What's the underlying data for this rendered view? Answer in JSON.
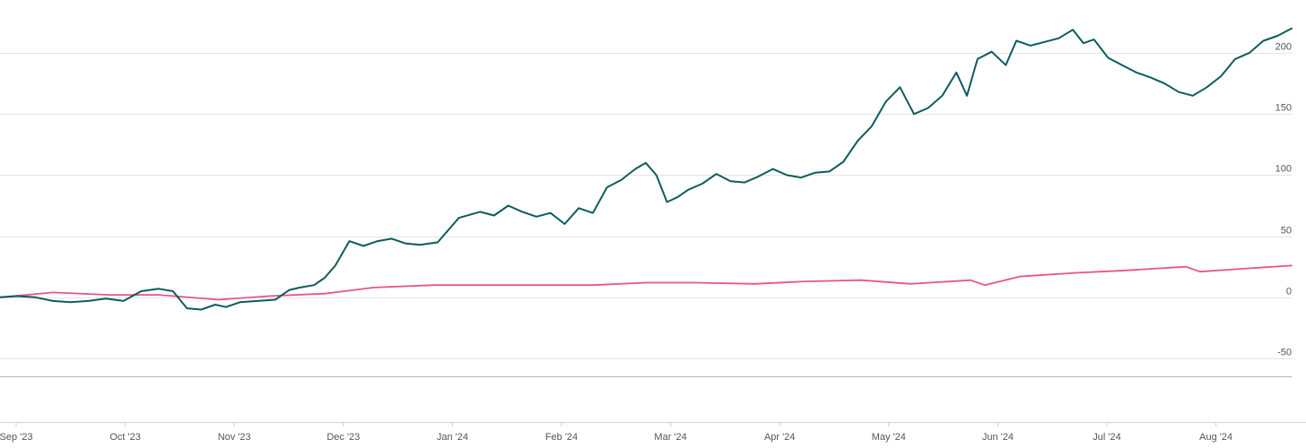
{
  "chart_data": {
    "type": "line",
    "x_axis": {
      "tick_labels": [
        "Sep '23",
        "Oct '23",
        "Nov '23",
        "Dec '23",
        "Jan '24",
        "Feb '24",
        "Mar '24",
        "Apr '24",
        "May '24",
        "Jun '24",
        "Jul '24",
        "Aug '24"
      ],
      "range": [
        "2023-08-31",
        "2024-08-31"
      ]
    },
    "y_axis": {
      "position": "right",
      "ticks": [
        -50,
        0,
        50,
        100,
        150,
        200
      ],
      "tick_labels": [
        "-50",
        "0",
        "50",
        "100",
        "150",
        "200"
      ],
      "range": [
        -50,
        225
      ]
    },
    "grid": true,
    "legend": "none",
    "series": [
      {
        "color": "#0d5c5c",
        "x": [
          "2023-08-31",
          "2023-09-05",
          "2023-09-10",
          "2023-09-15",
          "2023-09-20",
          "2023-09-25",
          "2023-09-30",
          "2023-10-05",
          "2023-10-10",
          "2023-10-15",
          "2023-10-19",
          "2023-10-23",
          "2023-10-27",
          "2023-10-31",
          "2023-11-03",
          "2023-11-07",
          "2023-11-12",
          "2023-11-17",
          "2023-11-21",
          "2023-11-24",
          "2023-11-28",
          "2023-12-01",
          "2023-12-04",
          "2023-12-08",
          "2023-12-12",
          "2023-12-16",
          "2023-12-20",
          "2023-12-24",
          "2023-12-28",
          "2024-01-02",
          "2024-01-08",
          "2024-01-14",
          "2024-01-18",
          "2024-01-22",
          "2024-01-26",
          "2024-01-30",
          "2024-02-03",
          "2024-02-07",
          "2024-02-11",
          "2024-02-15",
          "2024-02-19",
          "2024-02-23",
          "2024-02-27",
          "2024-03-01",
          "2024-03-04",
          "2024-03-07",
          "2024-03-10",
          "2024-03-13",
          "2024-03-17",
          "2024-03-21",
          "2024-03-25",
          "2024-03-29",
          "2024-04-02",
          "2024-04-06",
          "2024-04-10",
          "2024-04-14",
          "2024-04-18",
          "2024-04-22",
          "2024-04-26",
          "2024-04-30",
          "2024-05-04",
          "2024-05-08",
          "2024-05-12",
          "2024-05-16",
          "2024-05-20",
          "2024-05-24",
          "2024-05-28",
          "2024-05-31",
          "2024-06-03",
          "2024-06-07",
          "2024-06-11",
          "2024-06-14",
          "2024-06-18",
          "2024-06-22",
          "2024-06-26",
          "2024-06-30",
          "2024-07-03",
          "2024-07-06",
          "2024-07-10",
          "2024-07-14",
          "2024-07-18",
          "2024-07-22",
          "2024-07-26",
          "2024-07-30",
          "2024-08-03",
          "2024-08-07",
          "2024-08-11",
          "2024-08-15",
          "2024-08-19",
          "2024-08-23",
          "2024-08-27",
          "2024-08-31"
        ],
        "values": [
          0,
          1,
          0,
          -3,
          -4,
          -3,
          -1,
          -3,
          5,
          7,
          5,
          -9,
          -10,
          -6,
          -8,
          -4,
          -3,
          -2,
          6,
          8,
          10,
          16,
          26,
          46,
          42,
          46,
          48,
          44,
          43,
          45,
          65,
          70,
          67,
          75,
          70,
          66,
          69,
          60,
          73,
          69,
          90,
          96,
          105,
          110,
          100,
          78,
          82,
          88,
          93,
          101,
          95,
          94,
          99,
          105,
          100,
          98,
          102,
          103,
          111,
          128,
          140,
          160,
          172,
          150,
          155,
          165,
          184,
          165,
          195,
          201,
          190,
          210,
          206,
          209,
          212,
          219,
          208,
          211,
          196,
          190,
          184,
          180,
          175,
          168,
          165,
          172,
          181,
          195,
          200,
          210,
          214,
          220
        ]
      },
      {
        "color": "#e8548a",
        "x": [
          "2023-08-31",
          "2023-09-15",
          "2023-10-01",
          "2023-10-15",
          "2023-11-01",
          "2023-11-15",
          "2023-12-01",
          "2023-12-15",
          "2024-01-01",
          "2024-01-15",
          "2024-02-01",
          "2024-02-15",
          "2024-03-01",
          "2024-03-15",
          "2024-04-01",
          "2024-04-15",
          "2024-05-01",
          "2024-05-15",
          "2024-06-01",
          "2024-06-05",
          "2024-06-15",
          "2024-07-01",
          "2024-07-15",
          "2024-08-01",
          "2024-08-05",
          "2024-08-15",
          "2024-08-31"
        ],
        "values": [
          0,
          4,
          2,
          2,
          -2,
          1,
          3,
          8,
          10,
          10,
          10,
          10,
          12,
          12,
          11,
          13,
          14,
          11,
          14,
          10,
          17,
          20,
          22,
          25,
          21,
          23,
          26
        ]
      }
    ]
  }
}
